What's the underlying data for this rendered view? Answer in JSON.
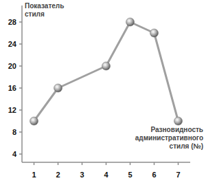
{
  "chart_data": {
    "type": "line",
    "x_label": "Разновидность административного стиля (№)",
    "y_label": "Показатель стиля",
    "x": [
      1,
      2,
      4,
      5,
      6,
      7
    ],
    "values": [
      10,
      16,
      20,
      28,
      26,
      10
    ],
    "color": "#a0a0a0",
    "marker": "sphere",
    "xlim": [
      0.5,
      7.5
    ],
    "xticks": [
      1,
      2,
      3,
      4,
      5,
      6,
      7
    ],
    "ylim": [
      2.5,
      31
    ],
    "yticks": [
      4,
      8,
      12,
      16,
      20,
      24,
      28
    ],
    "grid": false
  }
}
